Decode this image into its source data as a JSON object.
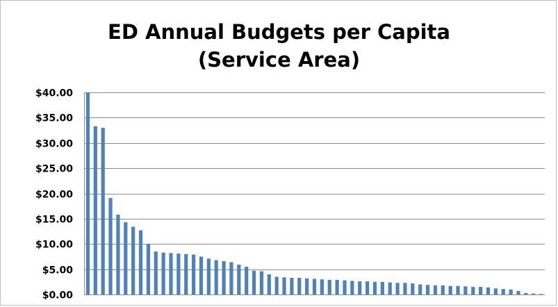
{
  "chart_data": {
    "type": "bar",
    "title_lines": [
      "ED Annual Budgets per Capita",
      "(Service Area)"
    ],
    "xlabel": "",
    "ylabel": "",
    "ylim": [
      0,
      40
    ],
    "yticks": [
      "$0.00",
      "$5.00",
      "$10.00",
      "$15.00",
      "$20.00",
      "$25.00",
      "$30.00",
      "$35.00",
      "$40.00"
    ],
    "ytick_values": [
      0,
      5,
      10,
      15,
      20,
      25,
      30,
      35,
      40
    ],
    "grid": true,
    "legend": "none",
    "bar_color": "#4f81bd",
    "values": [
      40.0,
      33.3,
      33.0,
      19.1,
      15.8,
      14.3,
      13.4,
      12.7,
      10.0,
      8.5,
      8.3,
      8.2,
      8.1,
      8.0,
      7.9,
      7.5,
      7.1,
      6.8,
      6.6,
      6.4,
      5.9,
      5.5,
      4.7,
      4.6,
      4.0,
      3.5,
      3.4,
      3.3,
      3.3,
      3.2,
      3.1,
      3.0,
      2.9,
      2.9,
      2.8,
      2.7,
      2.6,
      2.6,
      2.5,
      2.5,
      2.4,
      2.3,
      2.3,
      2.2,
      2.0,
      1.9,
      1.8,
      1.8,
      1.7,
      1.7,
      1.6,
      1.5,
      1.5,
      1.4,
      1.2,
      1.1,
      1.0,
      0.7,
      0.3,
      0.2,
      0.1
    ]
  }
}
